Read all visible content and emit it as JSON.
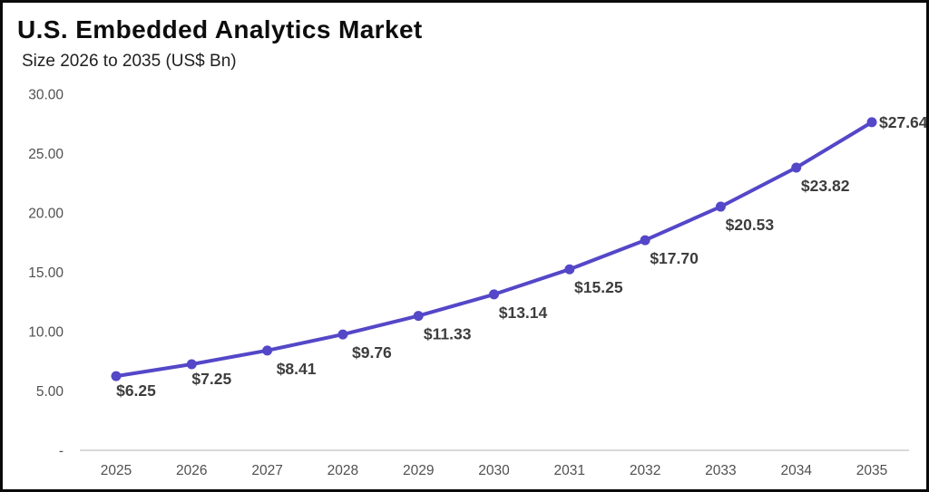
{
  "chart_data": {
    "type": "line",
    "title": "U.S. Embedded Analytics Market",
    "subtitle": "Size 2026 to 2035 (US$ Bn)",
    "x": [
      2025,
      2026,
      2027,
      2028,
      2029,
      2030,
      2031,
      2032,
      2033,
      2034,
      2035
    ],
    "values": [
      6.25,
      7.25,
      8.41,
      9.76,
      11.33,
      13.14,
      15.25,
      17.7,
      20.53,
      23.82,
      27.64
    ],
    "point_labels": [
      "$6.25",
      "$7.25",
      "$8.41",
      "$9.76",
      "$11.33",
      "$13.14",
      "$15.25",
      "$17.70",
      "$20.53",
      "$23.82",
      "$27.64"
    ],
    "yticks": [
      {
        "value": 30,
        "label": "30.00"
      },
      {
        "value": 25,
        "label": "25.00"
      },
      {
        "value": 20,
        "label": "20.00"
      },
      {
        "value": 15,
        "label": "15.00"
      },
      {
        "value": 10,
        "label": "10.00"
      },
      {
        "value": 5,
        "label": "5.00"
      },
      {
        "value": 0,
        "label": "-"
      }
    ],
    "ylim": [
      0,
      30
    ],
    "grid": false,
    "legend": "none",
    "colors": {
      "line": "#5447c8",
      "marker": "#5447c8",
      "point_label": "#3d3d3d",
      "tick_label": "#505050",
      "axis_line": "#d9d9d9",
      "title": "#0d0d0d",
      "border": "#0a0a0a"
    }
  }
}
